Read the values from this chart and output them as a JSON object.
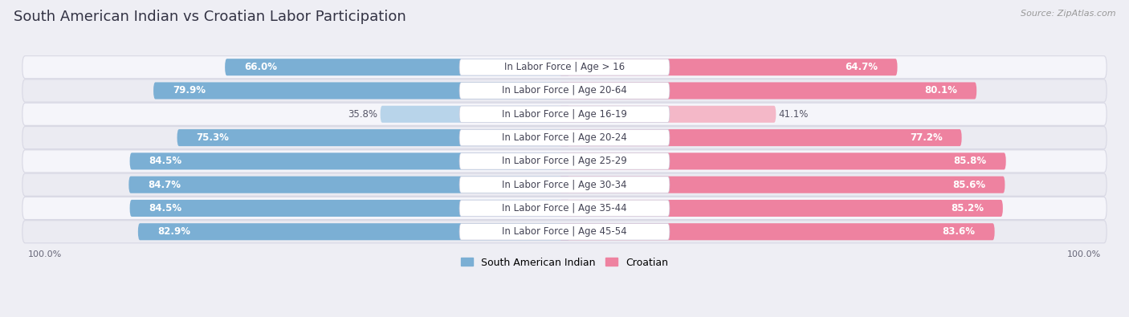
{
  "title": "South American Indian vs Croatian Labor Participation",
  "source": "Source: ZipAtlas.com",
  "categories": [
    "In Labor Force | Age > 16",
    "In Labor Force | Age 20-64",
    "In Labor Force | Age 16-19",
    "In Labor Force | Age 20-24",
    "In Labor Force | Age 25-29",
    "In Labor Force | Age 30-34",
    "In Labor Force | Age 35-44",
    "In Labor Force | Age 45-54"
  ],
  "south_american_values": [
    66.0,
    79.9,
    35.8,
    75.3,
    84.5,
    84.7,
    84.5,
    82.9
  ],
  "croatian_values": [
    64.7,
    80.1,
    41.1,
    77.2,
    85.8,
    85.6,
    85.2,
    83.6
  ],
  "blue_color": "#7BAFD4",
  "blue_light_color": "#B8D4EA",
  "pink_color": "#EE82A0",
  "pink_light_color": "#F4B8C8",
  "bg_color": "#EEEEF4",
  "row_bg_even": "#F5F5FA",
  "row_bg_odd": "#EBEBF2",
  "title_color": "#333344",
  "source_color": "#999999",
  "label_dark": "#444455",
  "label_text_color": "#555566",
  "max_value": 100.0,
  "title_fontsize": 13,
  "bar_label_fontsize": 8.5,
  "cat_label_fontsize": 8.5,
  "legend_fontsize": 9
}
